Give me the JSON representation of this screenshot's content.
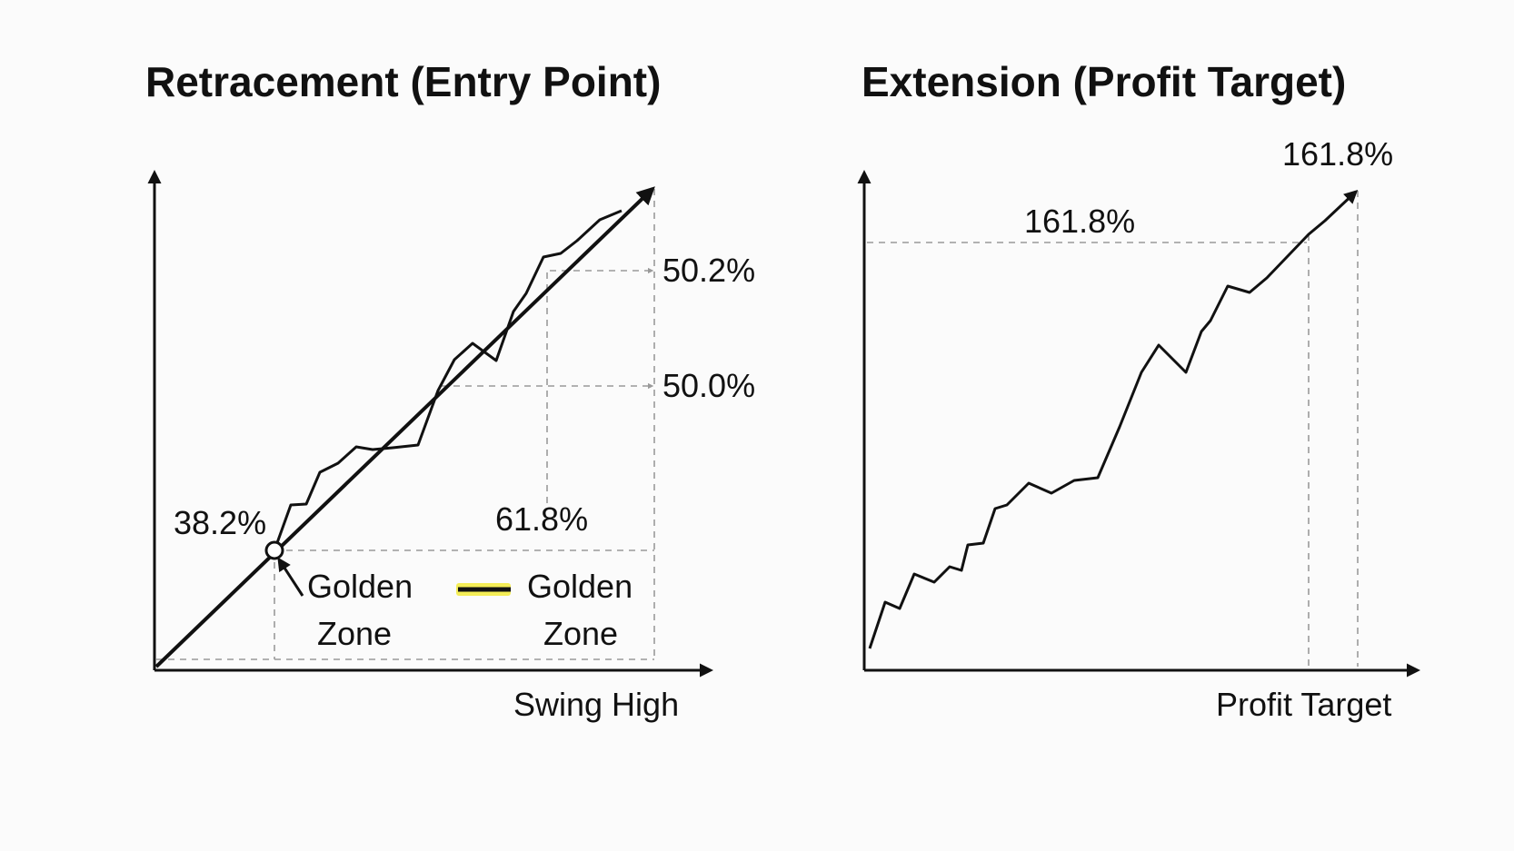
{
  "colors": {
    "ink": "#111111",
    "guide": "#9a9a9a",
    "background": "#fbfbfb",
    "highlight": "#f2ea3a"
  },
  "left_panel": {
    "title": "Retracement (Entry Point)",
    "x_axis_label": "Swing High",
    "level_upper_label": "50.2%",
    "level_middle_label": "50.0%",
    "level_left_label": "38.2%",
    "level_right_label": "61.8%",
    "zone_label_left": {
      "line1": "Golden",
      "line2": "Zone"
    },
    "zone_label_right": {
      "line1": "Golden",
      "line2": "Zone"
    },
    "legend_swatch_icon": "black-line-with-yellow-highlight",
    "entry_marker_icon": "hollow-circle-icon",
    "pointer_icon": "small-arrow-icon"
  },
  "right_panel": {
    "title": "Extension (Profit Target)",
    "x_axis_label": "Profit Target",
    "level_label": "161.8%",
    "level_top_label": "161.8%"
  }
}
